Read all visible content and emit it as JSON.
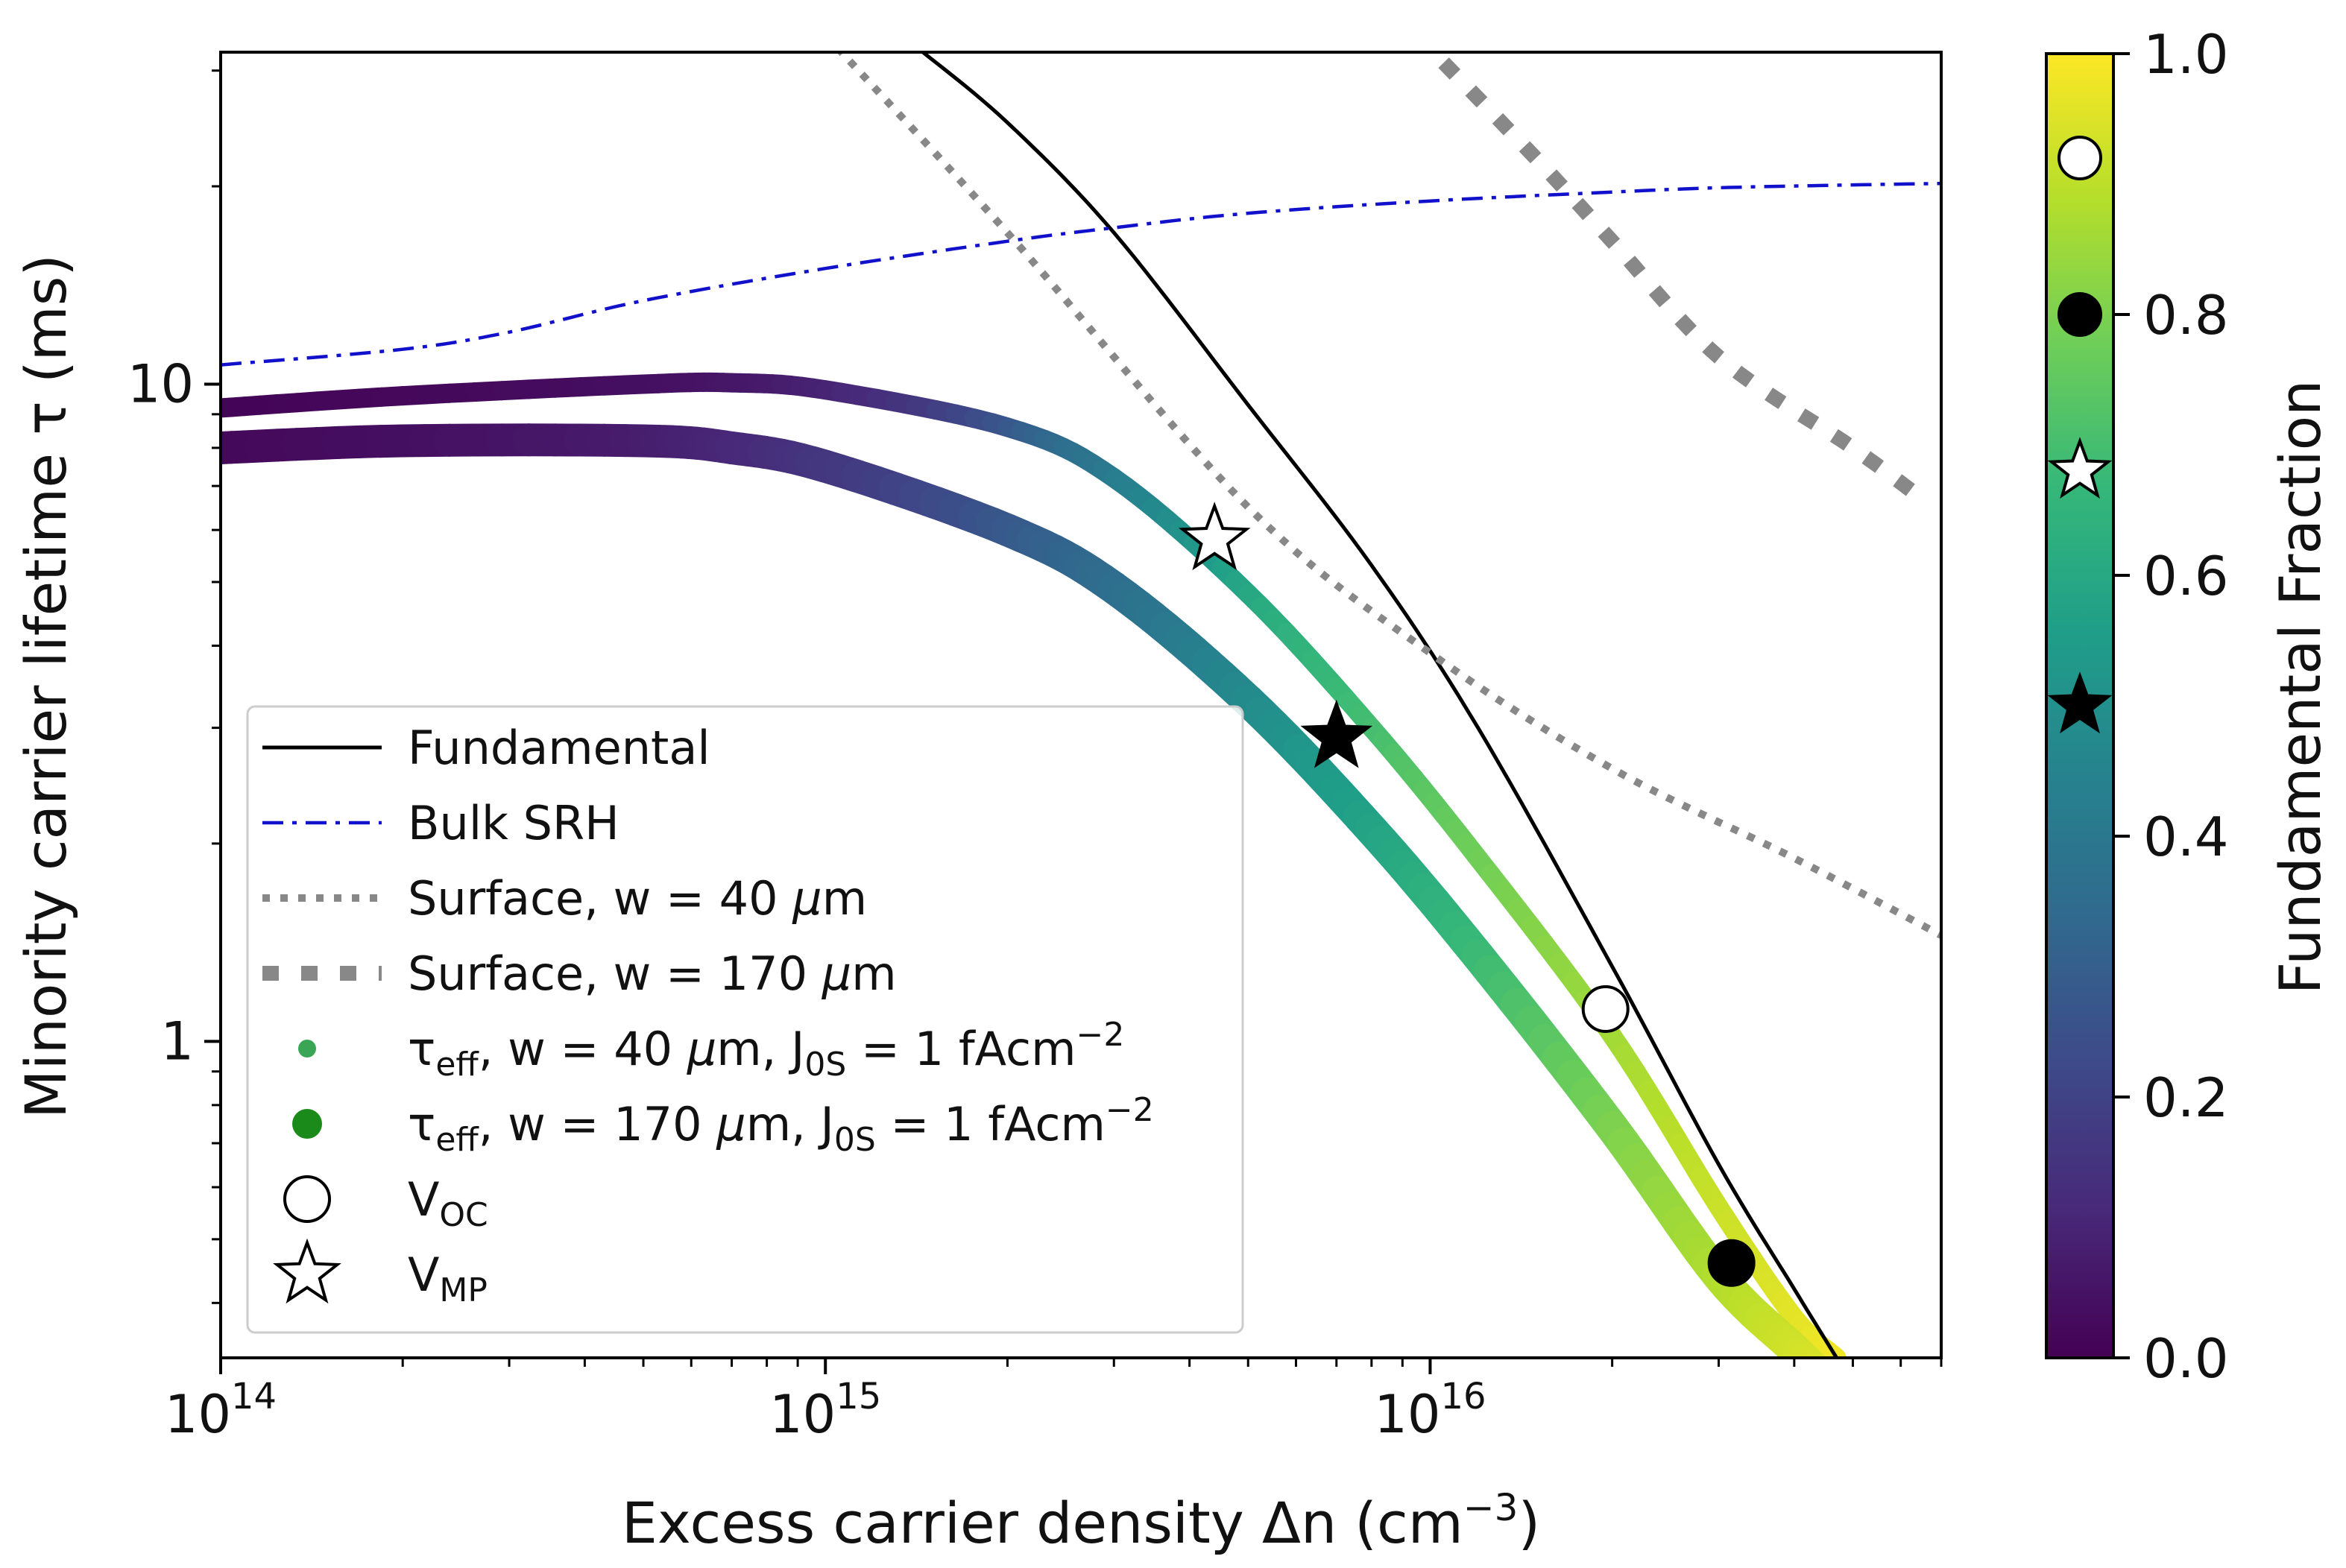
{
  "chart_data": {
    "type": "line",
    "xlabel": "Excess carrier density Δn (cm⁻³)",
    "xlabel_parts": {
      "main": "Excess carrier density Δn (cm",
      "sup": "−3",
      "tail": ")"
    },
    "ylabel": "Minority carrier lifetime τ (ms)",
    "x_scale": "log",
    "y_scale": "log",
    "xlim": [
      100000000000000.0,
      7e+16
    ],
    "ylim": [
      0.33,
      32
    ],
    "x_ticks": [
      {
        "value": 100000000000000.0,
        "base": "10",
        "exp": "14"
      },
      {
        "value": 1000000000000000.0,
        "base": "10",
        "exp": "15"
      },
      {
        "value": 1e+16,
        "base": "10",
        "exp": "16"
      }
    ],
    "y_ticks": [
      {
        "value": 1,
        "label": "1"
      },
      {
        "value": 10,
        "label": "10"
      }
    ],
    "grid": false,
    "legend_position": "lower-left",
    "series": [
      {
        "name": "Fundamental",
        "style": "solid",
        "color": "#000000",
        "x": [
          1450000000000000.0,
          2000000000000000.0,
          3000000000000000.0,
          5000000000000000.0,
          8000000000000000.0,
          1.2e+16,
          2e+16,
          3e+16,
          4e+16,
          4.7e+16
        ],
        "y": [
          32,
          25,
          17,
          9.3,
          5.3,
          3.0,
          1.3,
          0.65,
          0.42,
          0.33
        ]
      },
      {
        "name": "Bulk SRH",
        "style": "dashdot",
        "color": "#1111cc",
        "x": [
          100000000000000.0,
          200000000000000.0,
          300000000000000.0,
          500000000000000.0,
          1000000000000000.0,
          2000000000000000.0,
          3000000000000000.0,
          5000000000000000.0,
          1e+16,
          2e+16,
          3e+16,
          5e+16,
          7e+16
        ],
        "y": [
          10.7,
          11.3,
          12.0,
          13.4,
          15.0,
          16.5,
          17.3,
          18.2,
          19.0,
          19.6,
          19.9,
          20.1,
          20.2
        ]
      },
      {
        "name": "Surface, w = 40 μm",
        "style": "dotted",
        "color": "#888888",
        "x": [
          1000000000000000.0,
          2000000000000000.0,
          5000000000000000.0,
          1e+16,
          2e+16,
          4e+16,
          7e+16
        ],
        "y": [
          34,
          17,
          6.5,
          3.9,
          2.6,
          1.9,
          1.45
        ]
      },
      {
        "name": "Surface, w = 170 μm",
        "style": "dashed",
        "color": "#888888",
        "x": [
          9500000000000000.0,
          1.5e+16,
          2e+16,
          3e+16,
          5e+16,
          6.5e+16
        ],
        "y": [
          34,
          22,
          16.5,
          11,
          8.0,
          6.7
        ]
      }
    ],
    "teff_series": [
      {
        "name": "τeff, w = 40 μm, J0S = 1 fAcm⁻²",
        "marker_size": "small",
        "x": [
          100000000000000.0,
          200000000000000.0,
          500000000000000.0,
          700000000000000.0,
          1000000000000000.0,
          2000000000000000.0,
          3000000000000000.0,
          5000000000000000.0,
          8000000000000000.0,
          1.2e+16,
          2e+16,
          3e+16,
          4e+16,
          4.7e+16
        ],
        "y": [
          9.2,
          9.6,
          10.0,
          10.05,
          9.8,
          8.6,
          7.2,
          4.8,
          3.0,
          1.9,
          1.02,
          0.56,
          0.38,
          0.33
        ],
        "fraction": [
          0.01,
          0.02,
          0.04,
          0.06,
          0.1,
          0.28,
          0.42,
          0.6,
          0.7,
          0.78,
          0.86,
          0.92,
          0.96,
          0.98
        ]
      },
      {
        "name": "τeff, w = 170 μm, J0S = 1 fAcm⁻²",
        "marker_size": "large",
        "x": [
          100000000000000.0,
          200000000000000.0,
          500000000000000.0,
          700000000000000.0,
          1000000000000000.0,
          2000000000000000.0,
          3000000000000000.0,
          5000000000000000.0,
          8000000000000000.0,
          1.2e+16,
          2e+16,
          3e+16,
          4e+16,
          4.6e+16
        ],
        "y": [
          8.0,
          8.2,
          8.2,
          8.0,
          7.5,
          6.0,
          4.9,
          3.3,
          2.1,
          1.35,
          0.74,
          0.44,
          0.34,
          0.3
        ],
        "fraction": [
          0.02,
          0.04,
          0.08,
          0.11,
          0.16,
          0.28,
          0.36,
          0.48,
          0.58,
          0.68,
          0.8,
          0.88,
          0.93,
          0.95
        ]
      }
    ],
    "markers": [
      {
        "kind": "circle-open",
        "x": 1.95e+16,
        "y": 1.12,
        "label": "Voc, w = 40 μm"
      },
      {
        "kind": "circle-filled",
        "x": 3.15e+16,
        "y": 0.46,
        "label": "Voc, w = 170 μm"
      },
      {
        "kind": "star-open",
        "x": 4400000000000000.0,
        "y": 5.8,
        "label": "Vmp, w = 40 μm"
      },
      {
        "kind": "star-filled",
        "x": 7000000000000000.0,
        "y": 2.9,
        "label": "Vmp, w = 170 μm"
      }
    ],
    "colorbar": {
      "label": "Fundamental Fraction",
      "range": [
        0,
        1
      ],
      "ticks": [
        "0.0",
        "0.2",
        "0.4",
        "0.6",
        "0.8",
        "1.0"
      ],
      "colormap": "viridis",
      "colormap_stops": [
        "#440154",
        "#482878",
        "#3e4989",
        "#31688e",
        "#26828e",
        "#1f9e89",
        "#35b779",
        "#6ece58",
        "#b5de2b",
        "#fde725"
      ],
      "markers": [
        {
          "kind": "circle-open",
          "value": 0.92
        },
        {
          "kind": "circle-filled",
          "value": 0.8
        },
        {
          "kind": "star-open",
          "value": 0.68
        },
        {
          "kind": "star-filled",
          "value": 0.5
        }
      ]
    },
    "legend": [
      {
        "kind": "line-solid",
        "color": "#000000",
        "label": "Fundamental"
      },
      {
        "kind": "line-dashdot",
        "color": "#1111cc",
        "label": "Bulk SRH"
      },
      {
        "kind": "line-dotted",
        "color": "#888888",
        "label": "Surface, w = 40 μm"
      },
      {
        "kind": "line-dashed",
        "color": "#888888",
        "label": "Surface, w = 170 μm"
      },
      {
        "kind": "dot-small",
        "color": "#3aa655",
        "label_html": "τ<tspan baseline-shift=\"sub\" font-size=\"36\">eff</tspan>, w = 40 <tspan font-style=\"italic\">μ</tspan>m, J<tspan baseline-shift=\"sub\" font-size=\"36\">0S</tspan> = 1 fAcm<tspan baseline-shift=\"super\" font-size=\"36\">−2</tspan>",
        "label": "τeff, w = 40 μm, J0S = 1 fAcm−2"
      },
      {
        "kind": "dot-large",
        "color": "#1a8a1a",
        "label": "τeff, w = 170 μm, J0S = 1 fAcm−2"
      },
      {
        "kind": "circle-open",
        "color": "#000000",
        "label": "VOC"
      },
      {
        "kind": "star-open",
        "color": "#000000",
        "label": "VMP"
      }
    ]
  }
}
